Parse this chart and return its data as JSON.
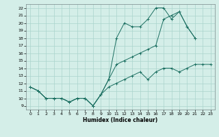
{
  "xlabel": "Humidex (Indice chaleur)",
  "bg_color": "#d4eee8",
  "grid_color": "#aad4cc",
  "line_color": "#1a6e60",
  "xlim": [
    -0.5,
    23.5
  ],
  "ylim": [
    8.5,
    22.5
  ],
  "xticks": [
    0,
    1,
    2,
    3,
    4,
    5,
    6,
    7,
    8,
    9,
    10,
    11,
    12,
    13,
    14,
    15,
    16,
    17,
    18,
    19,
    20,
    21,
    22,
    23
  ],
  "yticks": [
    9,
    10,
    11,
    12,
    13,
    14,
    15,
    16,
    17,
    18,
    19,
    20,
    21,
    22
  ],
  "line1_x": [
    0,
    1,
    2,
    3,
    4,
    5,
    6,
    7,
    8,
    9,
    10,
    11,
    12,
    13,
    14,
    15,
    16,
    17,
    18,
    19,
    20,
    21
  ],
  "line1_y": [
    11.5,
    11.0,
    10.0,
    10.0,
    10.0,
    9.5,
    10.0,
    10.0,
    9.0,
    10.5,
    12.5,
    18.0,
    20.0,
    19.5,
    19.5,
    20.5,
    22.0,
    22.0,
    20.5,
    21.5,
    19.5,
    18.0
  ],
  "line2_x": [
    0,
    1,
    2,
    3,
    4,
    5,
    6,
    7,
    8,
    9,
    10,
    11,
    12,
    13,
    14,
    15,
    16,
    17,
    18,
    19,
    20,
    21
  ],
  "line2_y": [
    11.5,
    11.0,
    10.0,
    10.0,
    10.0,
    9.5,
    10.0,
    10.0,
    9.0,
    10.5,
    12.5,
    14.5,
    15.0,
    15.5,
    16.0,
    16.5,
    17.0,
    20.5,
    21.0,
    21.5,
    19.5,
    18.0
  ],
  "line3_x": [
    0,
    1,
    2,
    3,
    4,
    5,
    6,
    7,
    8,
    9,
    10,
    11,
    12,
    13,
    14,
    15,
    16,
    17,
    18,
    19,
    20,
    21,
    22,
    23
  ],
  "line3_y": [
    11.5,
    11.0,
    10.0,
    10.0,
    10.0,
    9.5,
    10.0,
    10.0,
    9.0,
    10.5,
    11.5,
    12.0,
    12.5,
    13.0,
    13.5,
    12.5,
    13.5,
    14.0,
    14.0,
    13.5,
    14.0,
    14.5,
    14.5,
    14.5
  ]
}
